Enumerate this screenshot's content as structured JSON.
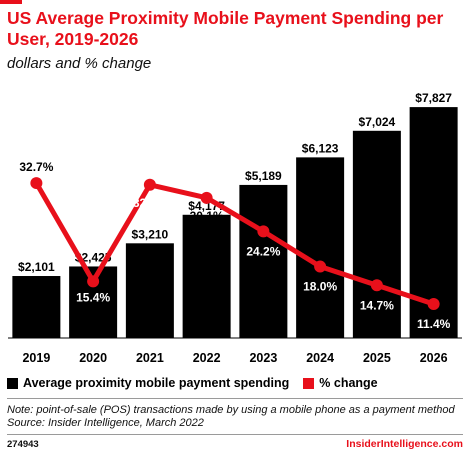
{
  "header": {
    "title": "US Average Proximity Mobile Payment Spending per User, 2019-2026",
    "subtitle": "dollars and % change"
  },
  "colors": {
    "accent": "#e8101b",
    "bars": "#000000",
    "line": "#e8101b"
  },
  "chart_data": {
    "type": "bar",
    "categories": [
      "2019",
      "2020",
      "2021",
      "2022",
      "2023",
      "2024",
      "2025",
      "2026"
    ],
    "series": [
      {
        "name": "Average proximity mobile payment spending",
        "type": "bar",
        "values": [
          2101,
          2425,
          3210,
          4177,
          5189,
          6123,
          7024,
          7827
        ],
        "labels": [
          "$2,101",
          "$2,425",
          "$3,210",
          "$4,177",
          "$5,189",
          "$6,123",
          "$7,024",
          "$7,827"
        ]
      },
      {
        "name": "% change",
        "type": "line",
        "values": [
          32.7,
          15.4,
          32.4,
          30.1,
          24.2,
          18.0,
          14.7,
          11.4
        ],
        "labels": [
          "32.7%",
          "15.4%",
          "32.4%",
          "30.1%",
          "24.2%",
          "18.0%",
          "14.7%",
          "11.4%"
        ]
      }
    ],
    "legend_position": "bottom-left",
    "grid": false
  },
  "legend": {
    "bar_label": "Average proximity mobile payment spending",
    "line_label": "% change"
  },
  "footer": {
    "note": "Note: point-of-sale (POS) transactions made by using a mobile phone as a payment method",
    "source": "Source: Insider Intelligence, March 2022",
    "chart_id": "274943",
    "brand": "InsiderIntelligence.com"
  }
}
